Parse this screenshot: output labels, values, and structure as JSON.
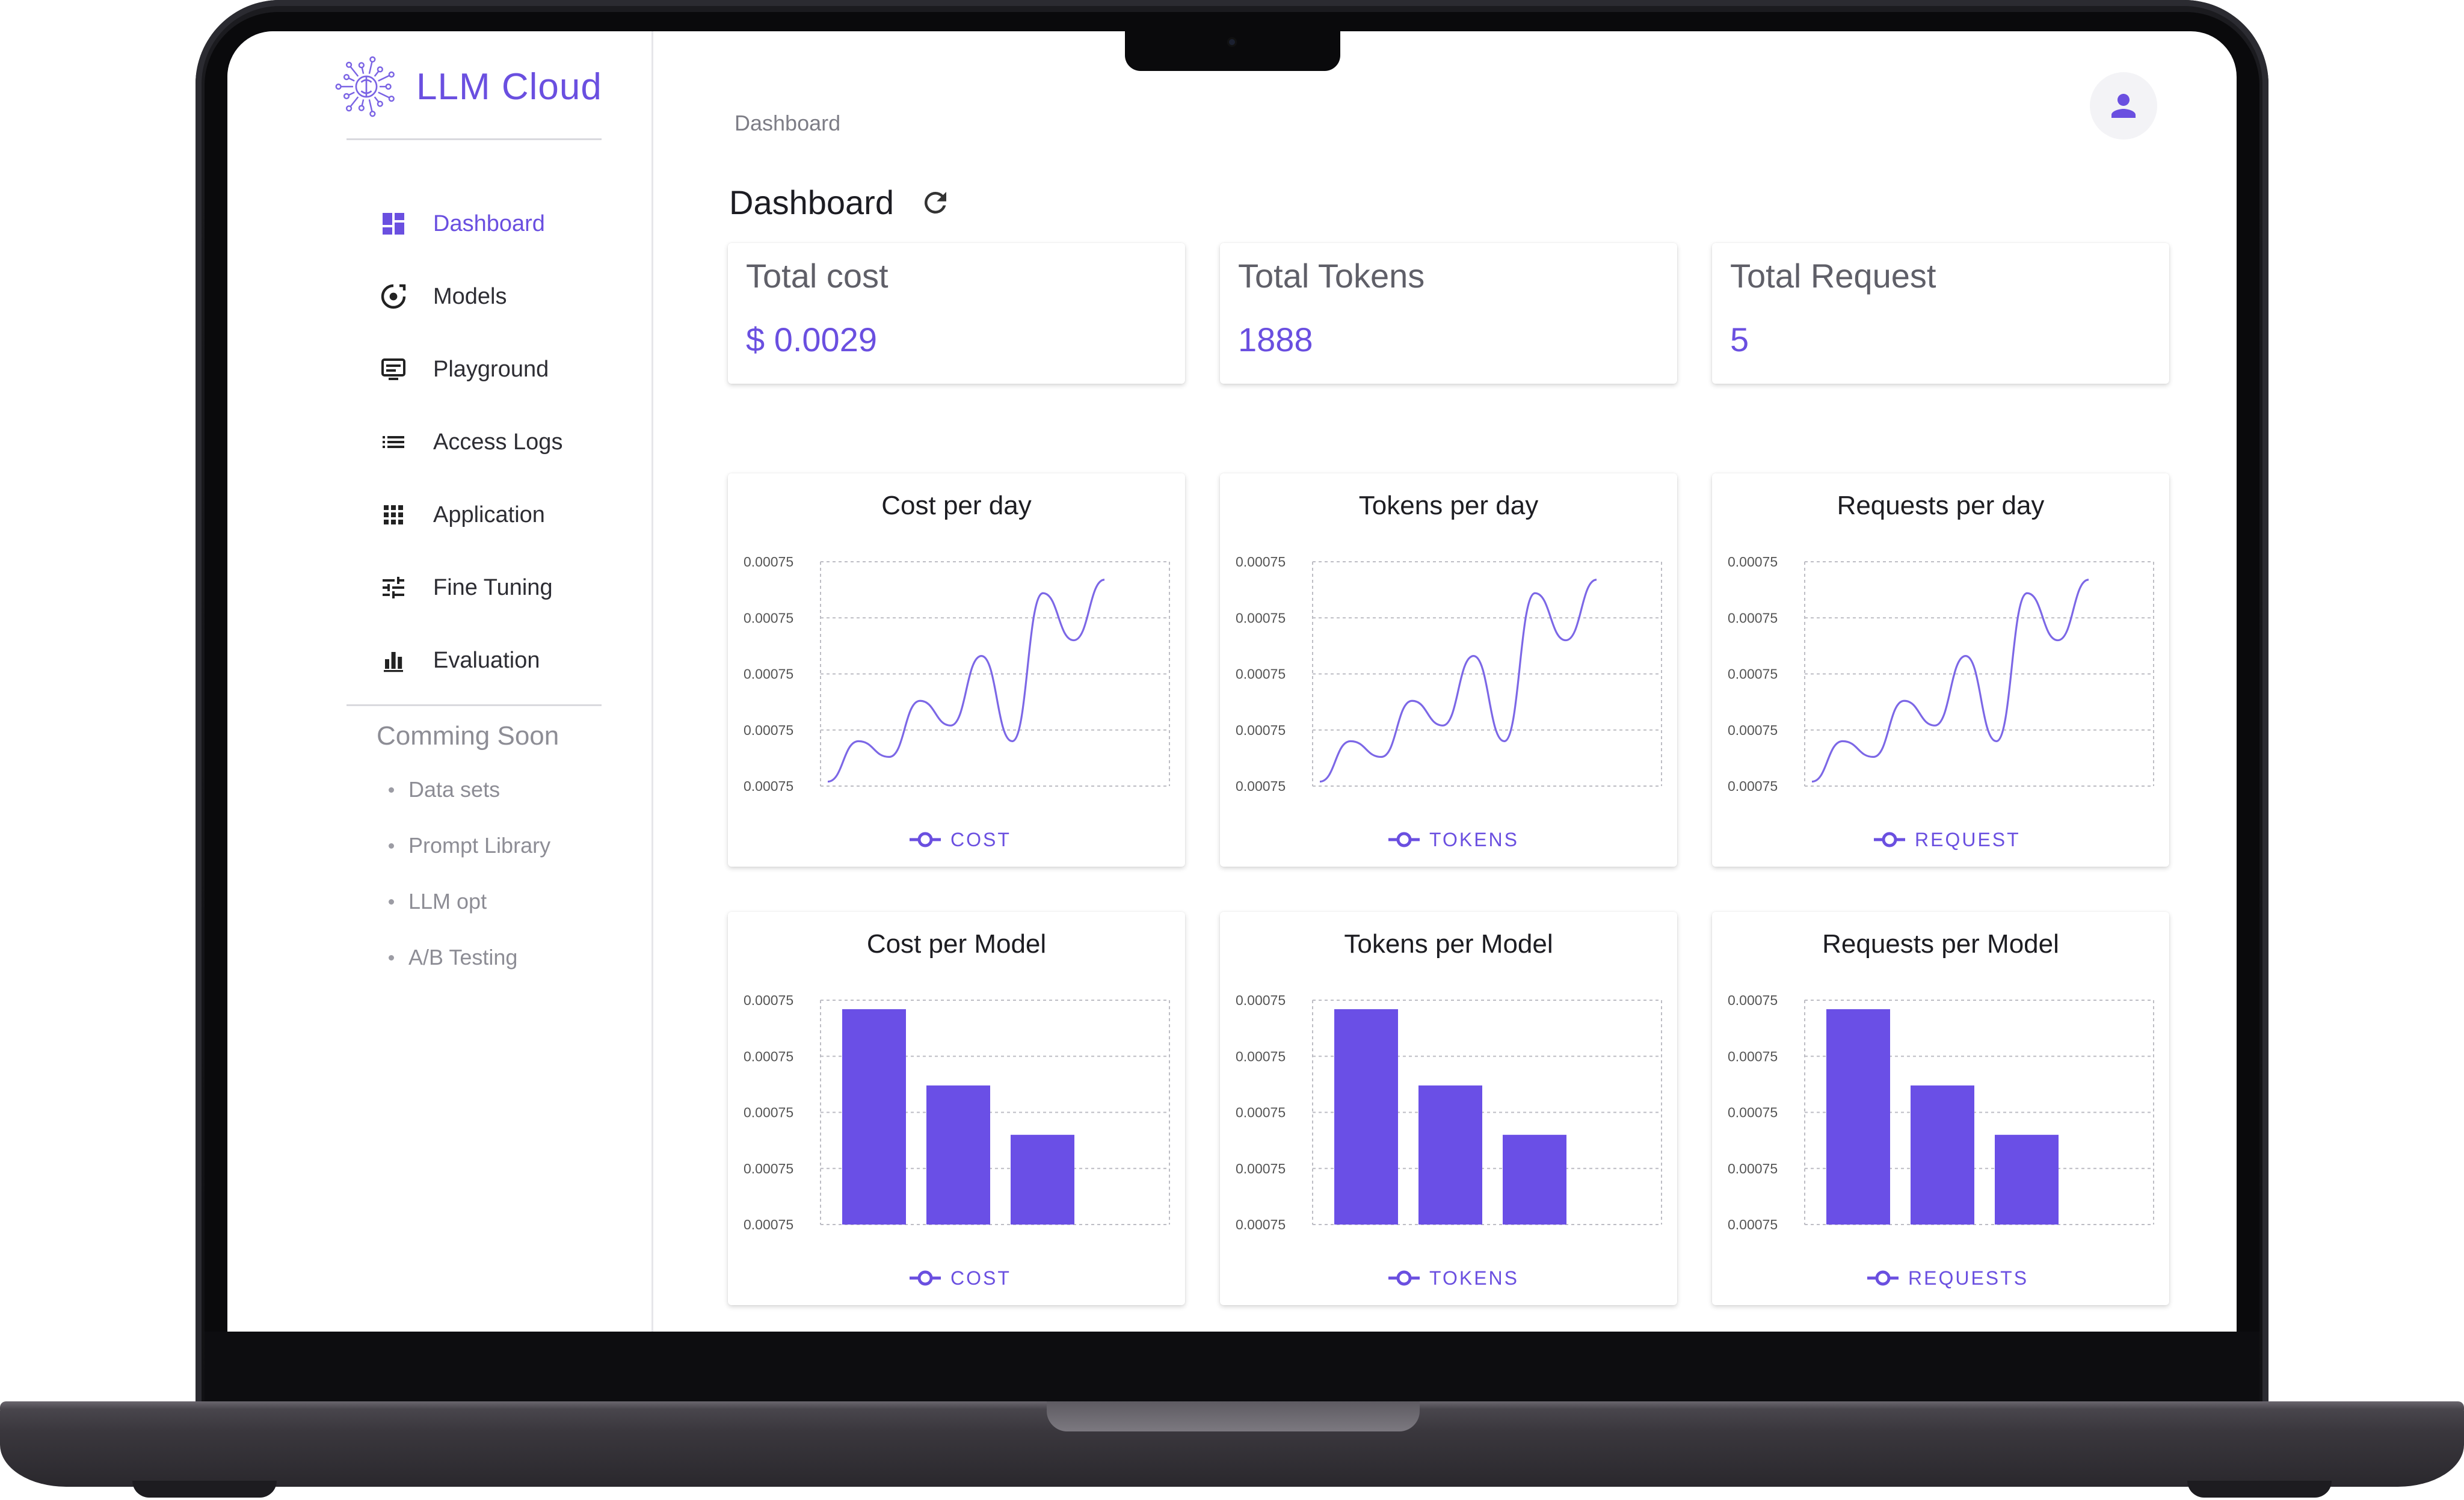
{
  "app": {
    "name": "LLM Cloud"
  },
  "colors": {
    "accent": "#6a4fe0",
    "chart_line": "#7c67e6",
    "bar": "#6a4fe6",
    "grid": "#bdbdc4"
  },
  "sidebar": {
    "items": [
      {
        "label": "Dashboard",
        "icon": "dashboard-icon",
        "active": true
      },
      {
        "label": "Models",
        "icon": "models-icon",
        "active": false
      },
      {
        "label": "Playground",
        "icon": "playground-icon",
        "active": false
      },
      {
        "label": "Access Logs",
        "icon": "list-icon",
        "active": false
      },
      {
        "label": "Application",
        "icon": "apps-grid-icon",
        "active": false
      },
      {
        "label": "Fine Tuning",
        "icon": "tune-icon",
        "active": false
      },
      {
        "label": "Evaluation",
        "icon": "bar-chart-icon",
        "active": false
      }
    ],
    "soon": {
      "title": "Comming Soon",
      "items": [
        "Data sets",
        "Prompt Library",
        "LLM opt",
        "A/B Testing"
      ]
    }
  },
  "header": {
    "breadcrumb": "Dashboard",
    "title": "Dashboard"
  },
  "stats": [
    {
      "label": "Total cost",
      "value": "$ 0.0029"
    },
    {
      "label": "Total Tokens",
      "value": "1888"
    },
    {
      "label": "Total Request",
      "value": "5"
    }
  ],
  "chart_data": [
    {
      "type": "line",
      "title": "Cost per day",
      "legend": "COST",
      "y_tick_labels": [
        "0.00075",
        "0.00075",
        "0.00075",
        "0.00075",
        "0.00075"
      ],
      "series": [
        {
          "name": "COST",
          "values": [
            0.02,
            0.2,
            0.13,
            0.38,
            0.27,
            0.58,
            0.2,
            0.86,
            0.65,
            0.92
          ]
        }
      ],
      "grid": true
    },
    {
      "type": "line",
      "title": "Tokens per day",
      "legend": "TOKENS",
      "y_tick_labels": [
        "0.00075",
        "0.00075",
        "0.00075",
        "0.00075",
        "0.00075"
      ],
      "series": [
        {
          "name": "TOKENS",
          "values": [
            0.02,
            0.2,
            0.13,
            0.38,
            0.27,
            0.58,
            0.2,
            0.86,
            0.65,
            0.92
          ]
        }
      ],
      "grid": true
    },
    {
      "type": "line",
      "title": "Requests per day",
      "legend": "REQUEST",
      "y_tick_labels": [
        "0.00075",
        "0.00075",
        "0.00075",
        "0.00075",
        "0.00075"
      ],
      "series": [
        {
          "name": "REQUEST",
          "values": [
            0.02,
            0.2,
            0.13,
            0.38,
            0.27,
            0.58,
            0.2,
            0.86,
            0.65,
            0.92
          ]
        }
      ],
      "grid": true
    },
    {
      "type": "bar",
      "title": "Cost per Model",
      "legend": "COST",
      "y_tick_labels": [
        "0.00075",
        "0.00075",
        "0.00075",
        "0.00075",
        "0.00075"
      ],
      "series": [
        {
          "name": "COST",
          "values": [
            0.96,
            0.62,
            0.4
          ]
        }
      ],
      "grid": true
    },
    {
      "type": "bar",
      "title": "Tokens per Model",
      "legend": "TOKENS",
      "y_tick_labels": [
        "0.00075",
        "0.00075",
        "0.00075",
        "0.00075",
        "0.00075"
      ],
      "series": [
        {
          "name": "TOKENS",
          "values": [
            0.96,
            0.62,
            0.4
          ]
        }
      ],
      "grid": true
    },
    {
      "type": "bar",
      "title": "Requests per Model",
      "legend": "REQUESTS",
      "y_tick_labels": [
        "0.00075",
        "0.00075",
        "0.00075",
        "0.00075",
        "0.00075"
      ],
      "series": [
        {
          "name": "REQUESTS",
          "values": [
            0.96,
            0.62,
            0.4
          ]
        }
      ],
      "grid": true
    }
  ]
}
